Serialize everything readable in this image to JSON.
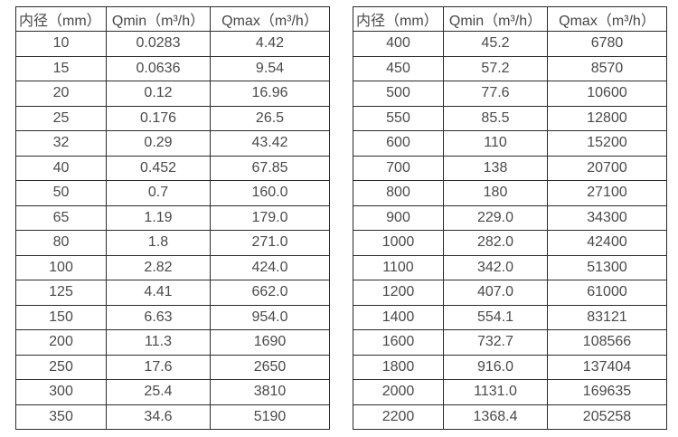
{
  "tables": [
    {
      "name": "flow-rate-table-small-diameters",
      "headers": [
        "内径（mm）",
        "Qmin（m³/h）",
        "Qmax（m³/h）"
      ],
      "rows": [
        [
          "10",
          "0.0283",
          "4.42"
        ],
        [
          "15",
          "0.0636",
          "9.54"
        ],
        [
          "20",
          "0.12",
          "16.96"
        ],
        [
          "25",
          "0.176",
          "26.5"
        ],
        [
          "32",
          "0.29",
          "43.42"
        ],
        [
          "40",
          "0.452",
          "67.85"
        ],
        [
          "50",
          "0.7",
          "160.0"
        ],
        [
          "65",
          "1.19",
          "179.0"
        ],
        [
          "80",
          "1.8",
          "271.0"
        ],
        [
          "100",
          "2.82",
          "424.0"
        ],
        [
          "125",
          "4.41",
          "662.0"
        ],
        [
          "150",
          "6.63",
          "954.0"
        ],
        [
          "200",
          "11.3",
          "1690"
        ],
        [
          "250",
          "17.6",
          "2650"
        ],
        [
          "300",
          "25.4",
          "3810"
        ],
        [
          "350",
          "34.6",
          "5190"
        ]
      ]
    },
    {
      "name": "flow-rate-table-large-diameters",
      "headers": [
        "内径（mm）",
        "Qmin（m³/h）",
        "Qmax（m³/h）"
      ],
      "rows": [
        [
          "400",
          "45.2",
          "6780"
        ],
        [
          "450",
          "57.2",
          "8570"
        ],
        [
          "500",
          "77.6",
          "10600"
        ],
        [
          "550",
          "85.5",
          "12800"
        ],
        [
          "600",
          "110",
          "15200"
        ],
        [
          "700",
          "138",
          "20700"
        ],
        [
          "800",
          "180",
          "27100"
        ],
        [
          "900",
          "229.0",
          "34300"
        ],
        [
          "1000",
          "282.0",
          "42400"
        ],
        [
          "1100",
          "342.0",
          "51300"
        ],
        [
          "1200",
          "407.0",
          "61000"
        ],
        [
          "1400",
          "554.1",
          "83121"
        ],
        [
          "1600",
          "732.7",
          "108566"
        ],
        [
          "1800",
          "916.0",
          "137404"
        ],
        [
          "2000",
          "1131.0",
          "169635"
        ],
        [
          "2200",
          "1368.4",
          "205258"
        ]
      ]
    }
  ],
  "colors": {
    "background": "#ffffff",
    "border": "#2b2b2b",
    "text": "#4a4a4a"
  }
}
